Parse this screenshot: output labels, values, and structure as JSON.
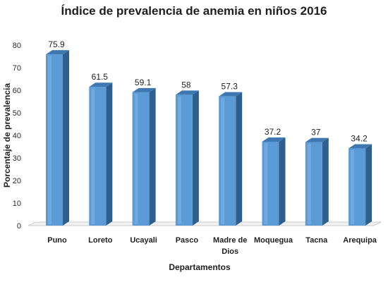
{
  "chart_data": {
    "type": "bar",
    "title": "Índice de prevalencia de anemia en niños 2016",
    "xlabel": "Departamentos",
    "ylabel": "Porcentaje de prevalencia",
    "categories": [
      "Puno",
      "Loreto",
      "Ucayali",
      "Pasco",
      "Madre de Dios",
      "Moquegua",
      "Tacna",
      "Arequipa"
    ],
    "category_lines": [
      [
        "Puno"
      ],
      [
        "Loreto"
      ],
      [
        "Ucayali"
      ],
      [
        "Pasco"
      ],
      [
        "Madre de",
        "Dios"
      ],
      [
        "Moquegua"
      ],
      [
        "Tacna"
      ],
      [
        "Arequipa"
      ]
    ],
    "values": [
      75.9,
      61.5,
      59.1,
      58,
      57.3,
      37.2,
      37,
      34.2
    ],
    "value_labels": [
      "75.9",
      "61.5",
      "59.1",
      "58",
      "57.3",
      "37.2",
      "37",
      "34.2"
    ],
    "ylim": [
      0,
      80
    ],
    "yticks": [
      0,
      10,
      20,
      30,
      40,
      50,
      60,
      70,
      80
    ],
    "grid": false,
    "legend": "none",
    "colors": {
      "bar_front": "#5b9bd5",
      "bar_side": "#2e5f8f",
      "bar_top": "#3f78b0",
      "axis": "#c0c0c0"
    }
  }
}
